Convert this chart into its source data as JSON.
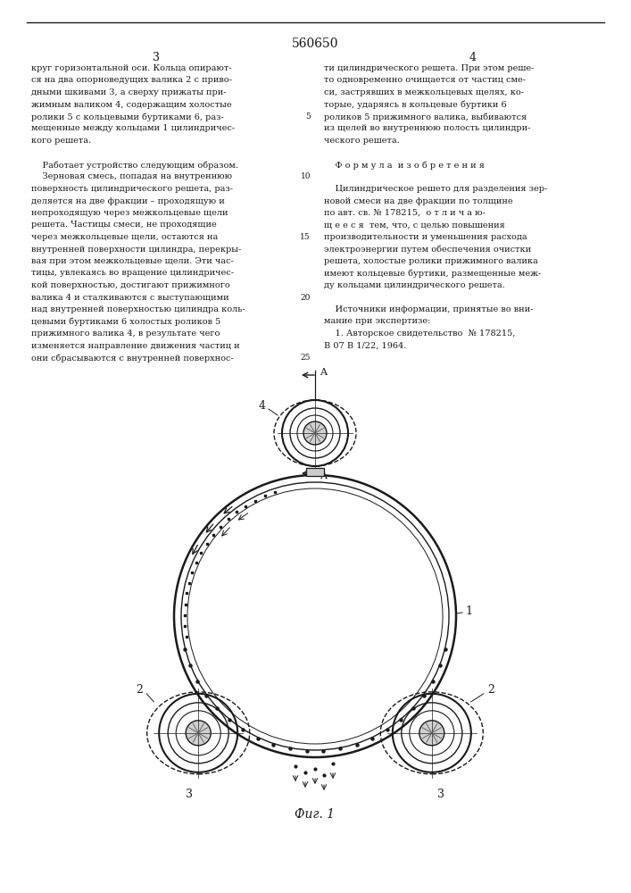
{
  "patent_number": "560650",
  "page_numbers": [
    "3",
    "4"
  ],
  "background_color": "#ffffff",
  "text_color": "#1a1a1a",
  "line_color": "#1a1a1a",
  "col1_text": [
    "круг горизонтальной оси. Кольца опирают-",
    "ся на два опорноведущих валика 2 с приво-",
    "дными шкивами 3, а сверху прижаты при-",
    "жимным валиком 4, содержащим холостые",
    "ролики 5 с кольцевыми буртиками 6, раз-",
    "мещенные между кольцами 1 цилиндричес-",
    "кого решета.",
    "",
    "    Работает устройство следующим образом.",
    "    Зерновая смесь, попадая на внутреннюю",
    "поверхность цилиндрического решета, раз-",
    "деляется на две фракции – проходящую и",
    "непроходящую через межкольцевые щели",
    "решета. Частицы смеси, не проходящие",
    "через межкольцевые щели, остаются на",
    "внутренней поверхности цилиндра, перекры-",
    "вая при этом межкольцевые щели. Эти час-",
    "тицы, увлекаясь во вращение цилиндричес-",
    "кой поверхностью, достигают прижимного",
    "валика 4 и сталкиваются с выступающими",
    "над внутренней поверхностью цилиндра коль-",
    "цевыми буртиками 6 холостых роликов 5",
    "прижимного валика 4, в результате чего",
    "изменяется направление движения частиц и",
    "они сбрасываются с внутренней поверхнос-"
  ],
  "col2_text": [
    "ти цилиндрического решета. При этом реше-",
    "то одновременно очищается от частиц сме-",
    "си, застрявших в межкольцевых щелях, ко-",
    "торые, ударяясь в кольцевые буртики 6",
    "роликов 5 прижимного валика, выбиваются",
    "из щелей во внутреннюю полость цилиндри-",
    "ческого решета.",
    "",
    "    Ф о р м у л а  и з о б р е т е н и я",
    "",
    "    Цилиндрическое решето для разделения зер-",
    "новой смеси на две фракции по толщине",
    "по авт. св. № 178215,  о т л и ч а ю-",
    "щ е е с я  тем, что, с целью повышения",
    "производительности и уменьшения расхода",
    "электроэнергии путем обеспечения очистки",
    "решета, холостые ролики прижимного валика",
    "имеют кольцевые буртики, размещенные меж-",
    "ду кольцами цилиндрического решета.",
    "",
    "    Источники информации, принятые во вни-",
    "мание при экспертизе:",
    "    1. Авторское свидетельство  № 178215,",
    "В 07 В 1/22, 1964."
  ],
  "fig_label": "Фиг. 1"
}
